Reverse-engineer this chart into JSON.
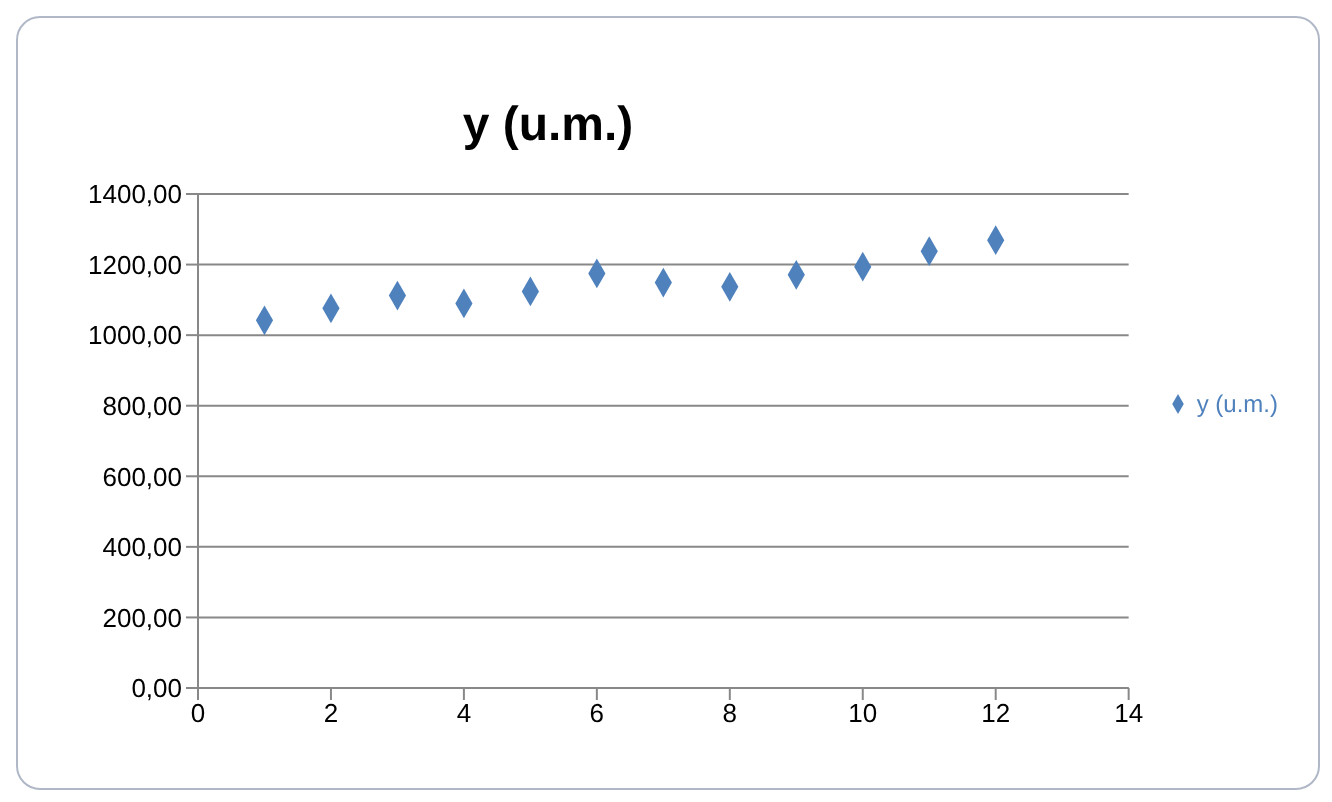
{
  "chart_data": {
    "type": "scatter",
    "title": "y (u.m.)",
    "x": [
      1,
      2,
      3,
      4,
      5,
      6,
      7,
      8,
      9,
      10,
      11,
      12
    ],
    "series": [
      {
        "name": "y (u.m.)",
        "color": "#4f81bd",
        "values": [
          1042,
          1076,
          1112,
          1090,
          1124,
          1175,
          1149,
          1137,
          1171,
          1194,
          1238,
          1269
        ]
      }
    ],
    "xlim": [
      0,
      14
    ],
    "xticks": [
      0,
      2,
      4,
      6,
      8,
      10,
      12,
      14
    ],
    "ylim": [
      0,
      1400
    ],
    "yticks": [
      {
        "value": 0,
        "label": "0,00"
      },
      {
        "value": 200,
        "label": "200,00"
      },
      {
        "value": 400,
        "label": "400,00"
      },
      {
        "value": 600,
        "label": "600,00"
      },
      {
        "value": 800,
        "label": "800,00"
      },
      {
        "value": 1000,
        "label": "1000,00"
      },
      {
        "value": 1200,
        "label": "1200,00"
      },
      {
        "value": 1400,
        "label": "1400,00"
      }
    ],
    "grid": "y",
    "legend": "right",
    "marker": "diamond"
  }
}
